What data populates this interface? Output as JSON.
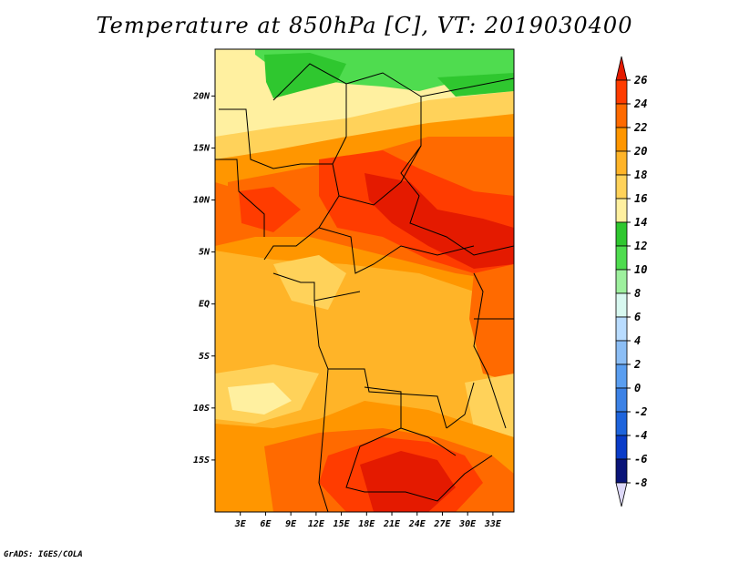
{
  "title": "Temperature at 850hPa [C], VT: 2019030400",
  "credit": "GrADS: IGES/COLA",
  "map": {
    "lon_range": [
      0,
      35.5
    ],
    "lat_range": [
      -20,
      24.5
    ],
    "lat_labels": [
      {
        "lat": 20,
        "text": "20N"
      },
      {
        "lat": 15,
        "text": "15N"
      },
      {
        "lat": 10,
        "text": "10N"
      },
      {
        "lat": 5,
        "text": "5N"
      },
      {
        "lat": 0,
        "text": "EQ"
      },
      {
        "lat": -5,
        "text": "5S"
      },
      {
        "lat": -10,
        "text": "10S"
      },
      {
        "lat": -15,
        "text": "15S"
      }
    ],
    "lon_labels": [
      {
        "lon": 3,
        "text": "3E"
      },
      {
        "lon": 6,
        "text": "6E"
      },
      {
        "lon": 9,
        "text": "9E"
      },
      {
        "lon": 12,
        "text": "12E"
      },
      {
        "lon": 15,
        "text": "15E"
      },
      {
        "lon": 18,
        "text": "18E"
      },
      {
        "lon": 21,
        "text": "21E"
      },
      {
        "lon": 24,
        "text": "24E"
      },
      {
        "lon": 27,
        "text": "27E"
      },
      {
        "lon": 30,
        "text": "30E"
      },
      {
        "lon": 33,
        "text": "33E"
      }
    ]
  },
  "colorbar": {
    "levels": [
      "26",
      "24",
      "22",
      "20",
      "18",
      "16",
      "14",
      "12",
      "10",
      "8",
      "6",
      "4",
      "2",
      "0",
      "-2",
      "-4",
      "-6",
      "-8"
    ],
    "colors": [
      "#e41a00",
      "#ff3c00",
      "#ff6a00",
      "#ff9600",
      "#ffb428",
      "#ffd25a",
      "#fff0a0",
      "#2fc72f",
      "#4fdc4f",
      "#9ef09e",
      "#d8f8f0",
      "#b9dcff",
      "#8cbef5",
      "#5a9ef0",
      "#3c82e6",
      "#1e64dc",
      "#0a3cc8",
      "#0a1478"
    ],
    "bottom_color": "#ddd8f8"
  }
}
